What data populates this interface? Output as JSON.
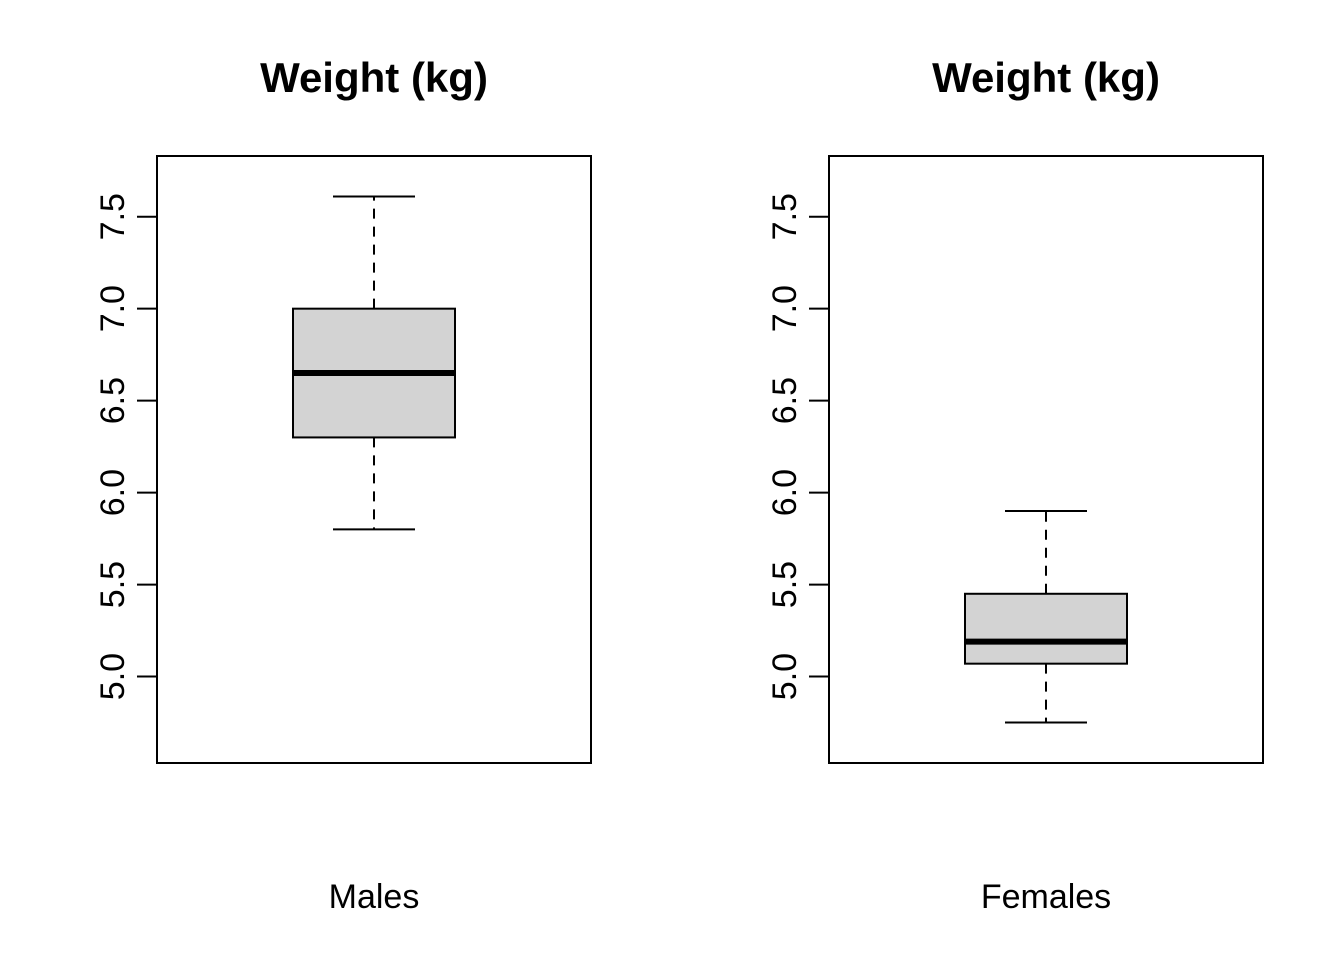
{
  "figure": {
    "background": "#ffffff",
    "foreground": "#000000"
  },
  "chart_data": [
    {
      "type": "boxplot",
      "title": "Weight (kg)",
      "category": "Males",
      "orientation": "vertical",
      "ylim": [
        4.53,
        7.83
      ],
      "y_tick_values": [
        5.0,
        5.5,
        6.0,
        6.5,
        7.0,
        7.5
      ],
      "y_tick_labels": [
        "5.0",
        "5.5",
        "6.0",
        "6.5",
        "7.0",
        "7.5"
      ],
      "whisker_low": 5.8,
      "q1": 6.3,
      "median": 6.65,
      "q3": 7.0,
      "whisker_high": 7.61,
      "outliers": [],
      "box_fill": "#D3D3D3",
      "line_color": "#000000",
      "grid": "off",
      "legend": "none"
    },
    {
      "type": "boxplot",
      "title": "Weight (kg)",
      "category": "Females",
      "orientation": "vertical",
      "ylim": [
        4.53,
        7.83
      ],
      "y_tick_values": [
        5.0,
        5.5,
        6.0,
        6.5,
        7.0,
        7.5
      ],
      "y_tick_labels": [
        "5.0",
        "5.5",
        "6.0",
        "6.5",
        "7.0",
        "7.5"
      ],
      "whisker_low": 4.75,
      "q1": 5.07,
      "median": 5.19,
      "q3": 5.45,
      "whisker_high": 5.9,
      "outliers": [],
      "box_fill": "#D3D3D3",
      "line_color": "#000000",
      "grid": "off",
      "legend": "none"
    }
  ]
}
